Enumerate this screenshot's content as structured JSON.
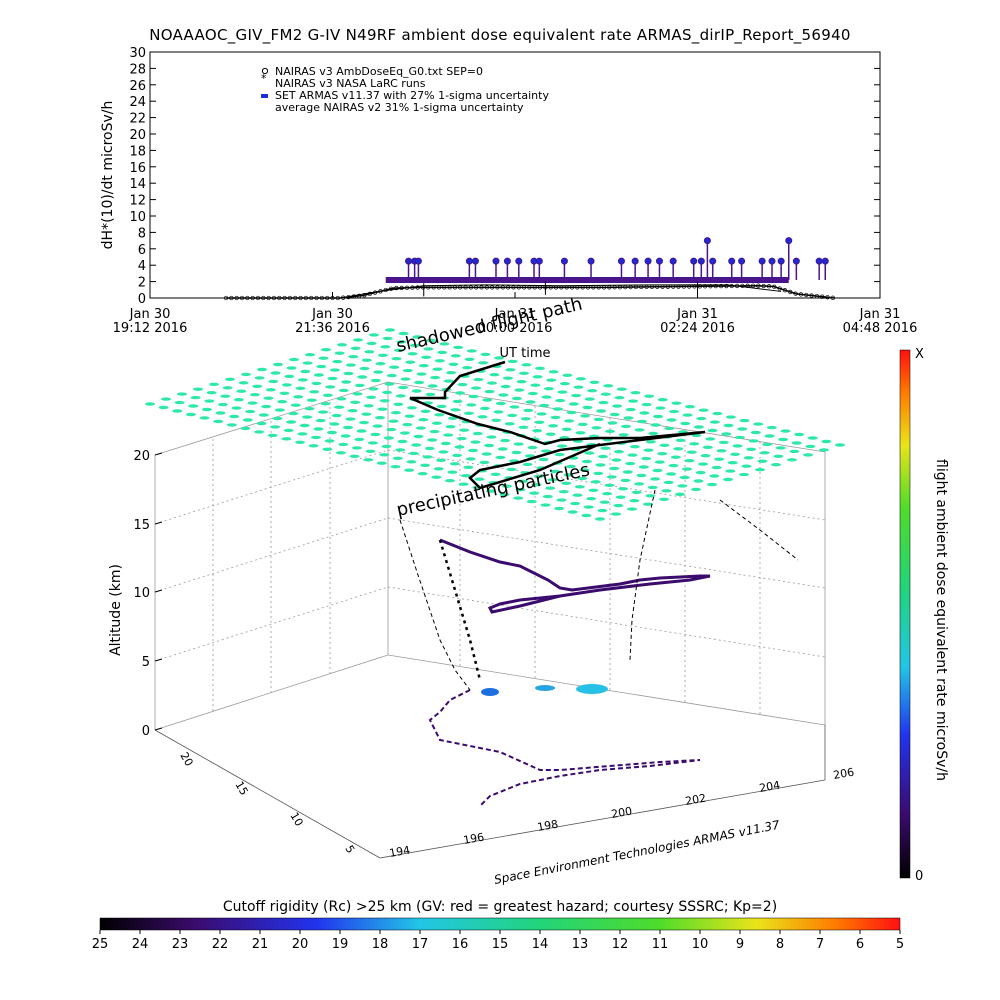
{
  "title": "NOAAAOC_GIV_FM2 G-IV    N49RF   ambient dose equivalent rate ARMAS_dirIP_Report_56940",
  "colors": {
    "armas": "#4a148c",
    "armas_marker": "#1d2bd6",
    "nairas": "#000000",
    "particles": "#2ee8a8"
  },
  "chart_data": [
    {
      "type": "line",
      "title": "NOAAAOC_GIV_FM2 G-IV    N49RF   ambient dose equivalent rate ARMAS_dirIP_Report_56940",
      "ylabel": "dH*(10)/dt microSv/h",
      "xlabel": "UT time",
      "ylim": [
        0,
        30
      ],
      "yticks": [
        "0",
        "2",
        "4",
        "6",
        "8",
        "10",
        "12",
        "14",
        "16",
        "18",
        "20",
        "22",
        "24",
        "26",
        "28",
        "30"
      ],
      "xrange_hours": [
        0,
        9.6
      ],
      "xticks": [
        {
          "pos": 0.0,
          "line1": "Jan 30",
          "line2": "19:12 2016"
        },
        {
          "pos": 2.4,
          "line1": "Jan 30",
          "line2": "21:36 2016"
        },
        {
          "pos": 4.8,
          "line1": "Jan 31",
          "line2": "00:00 2016"
        },
        {
          "pos": 7.2,
          "line1": "Jan 31",
          "line2": "02:24 2016"
        },
        {
          "pos": 9.6,
          "line1": "Jan 31",
          "line2": "04:48 2016"
        }
      ],
      "legend": [
        "NAIRAS v3 AmbDoseEq_G0.txt SEP=0",
        "NAIRAS v3 NASA LaRC runs",
        "SET ARMAS v11.37 with 27% 1-sigma uncertainty",
        "average NAIRAS v2 31% 1-sigma uncertainty"
      ],
      "legend_position": "top-left",
      "series": [
        {
          "name": "NAIRAS v3 AmbDoseEq_G0.txt SEP=0",
          "x": [
            1.0,
            2.0,
            2.5,
            2.8,
            3.2,
            3.6,
            4.0,
            5.0,
            6.0,
            7.0,
            8.0,
            8.2,
            8.5,
            9.0
          ],
          "y": [
            0,
            0,
            0,
            0.3,
            1.2,
            1.3,
            1.3,
            1.3,
            1.3,
            1.4,
            1.5,
            1.4,
            0.5,
            0
          ]
        },
        {
          "name": "NAIRAS v3 NASA LaRC runs",
          "x": [
            2.5,
            3.0,
            3.6,
            4.4,
            5.4,
            6.6,
            7.6,
            8.3
          ],
          "y": [
            0,
            0.8,
            1.5,
            1.6,
            1.5,
            1.6,
            1.6,
            0.8
          ]
        },
        {
          "name": "SET ARMAS v11.37 with 27% 1-sigma uncertainty",
          "x": [
            3.1,
            3.7,
            4.3,
            4.9,
            5.6,
            6.2,
            6.8,
            7.3,
            7.7,
            8.1
          ],
          "y": [
            2.2,
            2.2,
            2.2,
            2.2,
            2.2,
            2.2,
            2.2,
            2.2,
            3.3,
            2.2
          ]
        },
        {
          "name": "average NAIRAS v2 31% 1-sigma uncertainty",
          "x": [
            3.6,
            5.2,
            7.2
          ],
          "y": [
            1.0,
            1.2,
            1.1
          ]
        }
      ],
      "armas_spikes": [
        {
          "x": 3.4,
          "y": 4.5
        },
        {
          "x": 3.48,
          "y": 4.5
        },
        {
          "x": 3.53,
          "y": 4.5
        },
        {
          "x": 4.2,
          "y": 4.5
        },
        {
          "x": 4.28,
          "y": 4.5
        },
        {
          "x": 4.55,
          "y": 4.5
        },
        {
          "x": 4.7,
          "y": 4.5
        },
        {
          "x": 4.85,
          "y": 4.5
        },
        {
          "x": 5.05,
          "y": 4.5
        },
        {
          "x": 5.12,
          "y": 4.5
        },
        {
          "x": 5.45,
          "y": 4.5
        },
        {
          "x": 5.8,
          "y": 4.5
        },
        {
          "x": 6.2,
          "y": 4.5
        },
        {
          "x": 6.38,
          "y": 4.5
        },
        {
          "x": 6.55,
          "y": 4.5
        },
        {
          "x": 6.7,
          "y": 4.5
        },
        {
          "x": 6.88,
          "y": 4.5
        },
        {
          "x": 7.15,
          "y": 4.5
        },
        {
          "x": 7.25,
          "y": 4.5
        },
        {
          "x": 7.33,
          "y": 7.0
        },
        {
          "x": 7.4,
          "y": 4.5
        },
        {
          "x": 7.65,
          "y": 4.5
        },
        {
          "x": 7.78,
          "y": 4.5
        },
        {
          "x": 8.05,
          "y": 4.5
        },
        {
          "x": 8.18,
          "y": 4.5
        },
        {
          "x": 8.3,
          "y": 4.5
        },
        {
          "x": 8.4,
          "y": 7.0
        },
        {
          "x": 8.5,
          "y": 4.5
        },
        {
          "x": 8.8,
          "y": 4.5
        },
        {
          "x": 8.88,
          "y": 4.5
        }
      ]
    },
    {
      "type": "scatter",
      "zlabel": "Altitude (km)",
      "zticks": [
        "0",
        "5",
        "10",
        "15",
        "20"
      ],
      "xticks": [
        "194",
        "196",
        "198",
        "200",
        "202",
        "204",
        "206"
      ],
      "yticks": [
        "5",
        "10",
        "15",
        "20"
      ],
      "annotations": [
        "shadowed flight path",
        "precipitating particles"
      ],
      "colorbar_right": {
        "label": "flight ambient dose equivalent rate microSv/h",
        "min_label": "0",
        "max_label": "X"
      },
      "colorbar_bottom": {
        "label": "Cutoff rigidity (Rc) >25 km (GV: red = greatest hazard; courtesy SSSRC; Kp=2)",
        "ticks": [
          "25",
          "24",
          "23",
          "22",
          "21",
          "20",
          "19",
          "18",
          "17",
          "16",
          "15",
          "14",
          "13",
          "12",
          "11",
          "10",
          "9",
          "8",
          "7",
          "6",
          "5"
        ]
      }
    }
  ],
  "credit": "Space Environment Technologies ARMAS v11.37"
}
